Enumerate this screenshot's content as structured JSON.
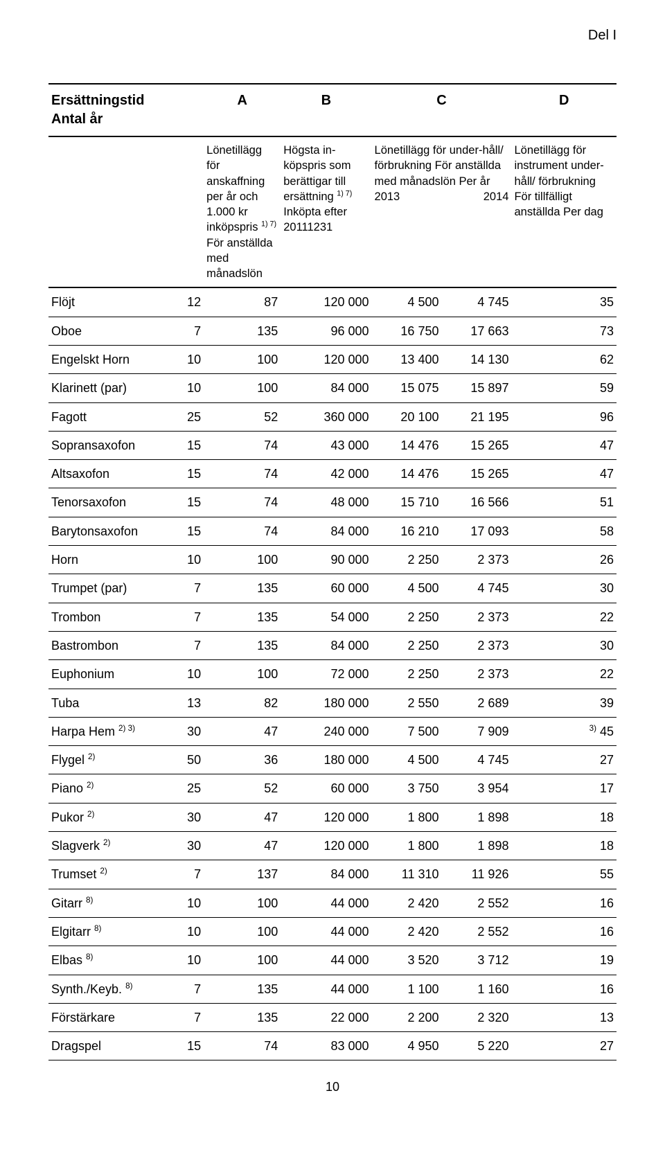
{
  "corner_label": "Del I",
  "page_number": "10",
  "table": {
    "letters_row": {
      "r0": "Ersättningstid\nAntal år",
      "A": "A",
      "B": "B",
      "C": "C",
      "D": "D"
    },
    "desc_row": {
      "A": "Lönetillägg för anskaffning per år och 1.000 kr inköpspris <span class=\"sup\">1) 7)</span> För anställda med månadslön",
      "B": "Högsta in-köpspris som berättigar till ersättning <span class=\"sup\">1) 7)</span> Inköpta efter 20111231",
      "C": "Lönetillägg för under-håll/ förbrukning För anställda med månadslön Per år",
      "C_years_left": "2013",
      "C_years_right": "2014",
      "D": "Lönetillägg för instrument under-håll/ förbrukning För tillfälligt anställda Per dag"
    },
    "rows": [
      {
        "name": "Flöjt",
        "years": "12",
        "A": "87",
        "B": "120 000",
        "C1": "4 500",
        "C2": "4 745",
        "D": "35"
      },
      {
        "name": "Oboe",
        "years": "7",
        "A": "135",
        "B": "96 000",
        "C1": "16 750",
        "C2": "17 663",
        "D": "73"
      },
      {
        "name": "Engelskt Horn",
        "years": "10",
        "A": "100",
        "B": "120 000",
        "C1": "13 400",
        "C2": "14 130",
        "D": "62"
      },
      {
        "name": "Klarinett (par)",
        "years": "10",
        "A": "100",
        "B": "84 000",
        "C1": "15 075",
        "C2": "15 897",
        "D": "59"
      },
      {
        "name": "Fagott",
        "years": "25",
        "A": "52",
        "B": "360 000",
        "C1": "20 100",
        "C2": "21 195",
        "D": "96"
      },
      {
        "name": "Sopransaxofon",
        "years": "15",
        "A": "74",
        "B": "43 000",
        "C1": "14 476",
        "C2": "15 265",
        "D": "47"
      },
      {
        "name": "Altsaxofon",
        "years": "15",
        "A": "74",
        "B": "42 000",
        "C1": "14 476",
        "C2": "15 265",
        "D": "47"
      },
      {
        "name": "Tenorsaxofon",
        "years": "15",
        "A": "74",
        "B": "48 000",
        "C1": "15 710",
        "C2": "16 566",
        "D": "51"
      },
      {
        "name": "Barytonsaxofon",
        "years": "15",
        "A": "74",
        "B": "84 000",
        "C1": "16 210",
        "C2": "17 093",
        "D": "58"
      },
      {
        "name": "Horn",
        "years": "10",
        "A": "100",
        "B": "90 000",
        "C1": "2 250",
        "C2": "2 373",
        "D": "26"
      },
      {
        "name": "Trumpet (par)",
        "years": "7",
        "A": "135",
        "B": "60 000",
        "C1": "4 500",
        "C2": "4 745",
        "D": "30"
      },
      {
        "name": "Trombon",
        "years": "7",
        "A": "135",
        "B": "54 000",
        "C1": "2 250",
        "C2": "2 373",
        "D": "22"
      },
      {
        "name": "Bastrombon",
        "years": "7",
        "A": "135",
        "B": "84 000",
        "C1": "2 250",
        "C2": "2 373",
        "D": "30"
      },
      {
        "name": "Euphonium",
        "years": "10",
        "A": "100",
        "B": "72 000",
        "C1": "2 250",
        "C2": "2 373",
        "D": "22"
      },
      {
        "name": "Tuba",
        "years": "13",
        "A": "82",
        "B": "180 000",
        "C1": "2 550",
        "C2": "2 689",
        "D": "39"
      },
      {
        "name": "Harpa Hem <span class=\"sup\">2) 3)</span>",
        "years": "30",
        "A": "47",
        "B": "240 000",
        "C1": "7 500",
        "C2": "7 909",
        "D": "<span class=\"sup\">3)</span> 45"
      },
      {
        "name": "Flygel <span class=\"sup\">2)</span>",
        "years": "50",
        "A": "36",
        "B": "180 000",
        "C1": "4 500",
        "C2": "4 745",
        "D": "27"
      },
      {
        "name": "Piano <span class=\"sup\">2)</span>",
        "years": "25",
        "A": "52",
        "B": "60 000",
        "C1": "3 750",
        "C2": "3 954",
        "D": "17"
      },
      {
        "name": "Pukor <span class=\"sup\">2)</span>",
        "years": "30",
        "A": "47",
        "B": "120 000",
        "C1": "1 800",
        "C2": "1 898",
        "D": "18"
      },
      {
        "name": "Slagverk <span class=\"sup\">2)</span>",
        "years": "30",
        "A": "47",
        "B": "120 000",
        "C1": "1 800",
        "C2": "1 898",
        "D": "18"
      },
      {
        "name": "Trumset <span class=\"sup\">2)</span>",
        "years": "7",
        "A": "137",
        "B": "84 000",
        "C1": "11 310",
        "C2": "11 926",
        "D": "55"
      },
      {
        "name": "Gitarr <span class=\"sup\">8)</span>",
        "years": "10",
        "A": "100",
        "B": "44 000",
        "C1": "2 420",
        "C2": "2 552",
        "D": "16"
      },
      {
        "name": "Elgitarr <span class=\"sup\">8)</span>",
        "years": "10",
        "A": "100",
        "B": "44 000",
        "C1": "2 420",
        "C2": "2 552",
        "D": "16"
      },
      {
        "name": "Elbas <span class=\"sup\">8)</span>",
        "years": "10",
        "A": "100",
        "B": "44 000",
        "C1": "3 520",
        "C2": "3 712",
        "D": "19"
      },
      {
        "name": "Synth./Keyb. <span class=\"sup\">8)</span>",
        "years": "7",
        "A": "135",
        "B": "44 000",
        "C1": "1 100",
        "C2": "1 160",
        "D": "16"
      },
      {
        "name": "Förstärkare",
        "years": "7",
        "A": "135",
        "B": "22 000",
        "C1": "2 200",
        "C2": "2 320",
        "D": "13"
      },
      {
        "name": "Dragspel",
        "years": "15",
        "A": "74",
        "B": "83 000",
        "C1": "4 950",
        "C2": "5 220",
        "D": "27"
      }
    ]
  }
}
